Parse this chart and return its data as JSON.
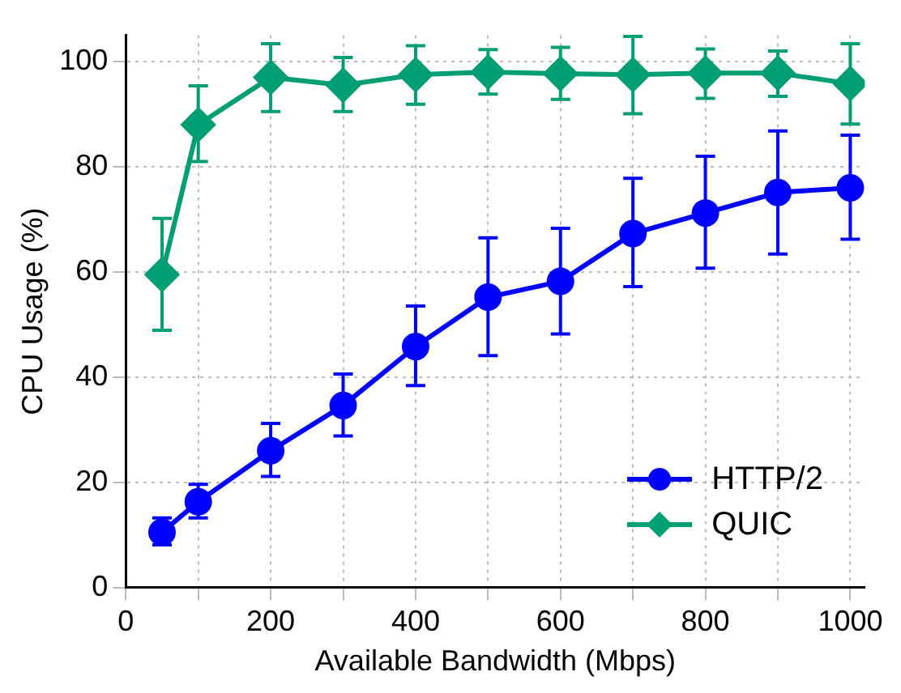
{
  "chart_data": {
    "type": "line",
    "xlabel": "Available Bandwidth (Mbps)",
    "ylabel": "CPU Usage (%)",
    "x": [
      50,
      100,
      200,
      300,
      400,
      500,
      600,
      700,
      800,
      900,
      1000
    ],
    "series": [
      {
        "name": "HTTP/2",
        "color": "#0000ff",
        "marker": "circle",
        "values": [
          10.5,
          16.3,
          26,
          34.6,
          45.8,
          55.2,
          58.2,
          67.3,
          71.2,
          75.1,
          76.0
        ],
        "errors": [
          [
            8.1,
            13.2
          ],
          [
            13.2,
            19.6
          ],
          [
            21.1,
            31.2
          ],
          [
            28.8,
            40.6
          ],
          [
            38.4,
            53.5
          ],
          [
            44.1,
            66.5
          ],
          [
            48.2,
            68.3
          ],
          [
            57.2,
            77.8
          ],
          [
            60.7,
            82.0
          ],
          [
            63.4,
            86.8
          ],
          [
            66.2,
            86.0
          ]
        ]
      },
      {
        "name": "QUIC",
        "color": "#009e73",
        "marker": "diamond",
        "values": [
          59.5,
          88,
          97,
          95.5,
          97.5,
          98,
          97.7,
          97.5,
          97.8,
          97.8,
          95.8
        ],
        "errors": [
          [
            48.9,
            70.2
          ],
          [
            81.0,
            95.4
          ],
          [
            90.5,
            103.4
          ],
          [
            90.5,
            100.8
          ],
          [
            91.9,
            103.0
          ],
          [
            93.8,
            102.3
          ],
          [
            92.8,
            102.7
          ],
          [
            90.1,
            104.8
          ],
          [
            93.0,
            102.4
          ],
          [
            93.4,
            102.0
          ],
          [
            88.1,
            103.4
          ]
        ]
      }
    ],
    "xlim": [
      0,
      1020
    ],
    "xticks": [
      0,
      {
        "value": 100,
        "label": null
      },
      200,
      {
        "value": 300,
        "label": null
      },
      400,
      {
        "value": 500,
        "label": null
      },
      600,
      {
        "value": 700,
        "label": null
      },
      800,
      {
        "value": 900,
        "label": null
      },
      1000
    ],
    "ylim": [
      0,
      105
    ],
    "yticks": [
      0,
      20,
      40,
      60,
      80,
      100
    ],
    "grid": true,
    "legend": "bottom right",
    "line_style": "solid"
  }
}
